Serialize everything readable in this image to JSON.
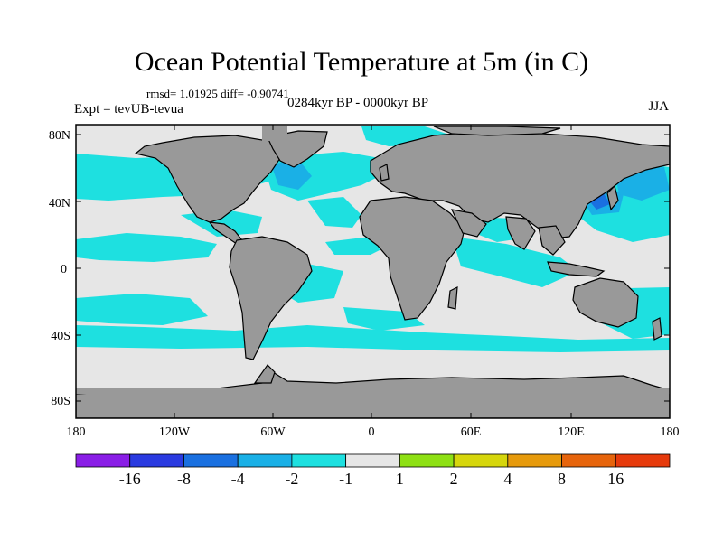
{
  "title": "Ocean Potential Temperature at 5m (in C)",
  "stats": "rmsd= 1.01925 diff= -0.90741",
  "period": "0284kyr BP - 0000kyr BP",
  "experiment": "Expt = tevUB-tevua",
  "season": "JJA",
  "lat_labels": [
    "80N",
    "40N",
    "0",
    "40S",
    "80S"
  ],
  "lon_labels": [
    "180",
    "120W",
    "60W",
    "0",
    "60E",
    "120E",
    "180"
  ],
  "colorbar": {
    "labels": [
      "-16",
      "-8",
      "-4",
      "-2",
      "-1",
      "1",
      "2",
      "4",
      "8",
      "16"
    ],
    "colors": [
      "#8a1ee6",
      "#2a3ae0",
      "#1a70e0",
      "#1ab0e6",
      "#1ee0e0",
      "#e6e6e6",
      "#8ee014",
      "#d6d60c",
      "#e69a0c",
      "#e6640c",
      "#e63a0c"
    ]
  },
  "colors": {
    "land": "#999999",
    "ocean_neutral": "#e6e6e6",
    "cool_1": "#1ee0e0",
    "cool_2": "#1ab0e6",
    "cool_3": "#1a70e0"
  }
}
